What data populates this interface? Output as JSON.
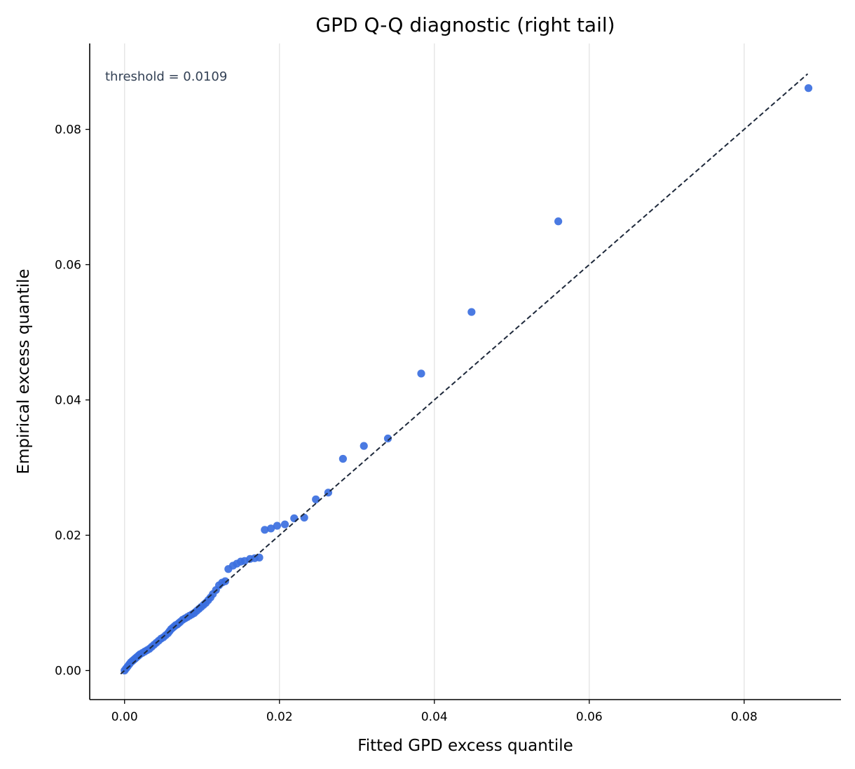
{
  "chart_data": {
    "type": "scatter",
    "title": "GPD Q-Q diagnostic (right tail)",
    "xlabel": "Fitted GPD excess quantile",
    "ylabel": "Empirical excess quantile",
    "annotation": "threshold = 0.0109",
    "xlim": [
      -0.0045,
      0.0925
    ],
    "ylim": [
      -0.0043,
      0.0927
    ],
    "xticks": [
      0.0,
      0.02,
      0.04,
      0.06,
      0.08
    ],
    "xtick_labels": [
      "0.00",
      "0.02",
      "0.04",
      "0.06",
      "0.08"
    ],
    "yticks": [
      0.0,
      0.02,
      0.04,
      0.06,
      0.08
    ],
    "ytick_labels": [
      "0.00",
      "0.02",
      "0.04",
      "0.06",
      "0.08"
    ],
    "grid": "vertical",
    "point_color": "#3b6fe0",
    "line_color": "#1e293b",
    "reference_line": {
      "style": "dashed",
      "x": [
        -0.0005,
        0.0882
      ],
      "y": [
        -0.0005,
        0.0882
      ]
    },
    "series": [
      {
        "x": [
          0.0,
          0.0002,
          0.0004,
          0.0006,
          0.0008,
          0.001,
          0.0012,
          0.0014,
          0.0016,
          0.0018,
          0.002,
          0.0023,
          0.0026,
          0.0029,
          0.0032,
          0.0035,
          0.0038,
          0.0041,
          0.0044,
          0.0047,
          0.005,
          0.0053,
          0.0056,
          0.0058,
          0.006,
          0.0062,
          0.0064,
          0.0066,
          0.0068,
          0.007,
          0.0072,
          0.0075,
          0.0078,
          0.0081,
          0.0084,
          0.0087,
          0.009,
          0.0093,
          0.0096,
          0.0099,
          0.0102,
          0.0105,
          0.0108,
          0.0111,
          0.0114,
          0.0118,
          0.0122,
          0.0126,
          0.013,
          0.0134,
          0.014,
          0.0145,
          0.015,
          0.0155,
          0.0162,
          0.0168,
          0.0174,
          0.0181,
          0.0189,
          0.0197,
          0.0207,
          0.0219,
          0.0232,
          0.0247,
          0.0263,
          0.0282,
          0.0309,
          0.034,
          0.0383,
          0.0448,
          0.056,
          0.0883
        ],
        "y": [
          0.0,
          0.0003,
          0.0006,
          0.0009,
          0.0012,
          0.0014,
          0.0016,
          0.0018,
          0.002,
          0.0022,
          0.0024,
          0.0026,
          0.0028,
          0.003,
          0.0032,
          0.0035,
          0.0038,
          0.0041,
          0.0044,
          0.0047,
          0.0049,
          0.0052,
          0.0055,
          0.0058,
          0.0061,
          0.0063,
          0.0065,
          0.0067,
          0.0068,
          0.007,
          0.0072,
          0.0075,
          0.0077,
          0.0079,
          0.0081,
          0.0083,
          0.0085,
          0.0088,
          0.0091,
          0.0094,
          0.0097,
          0.01,
          0.0104,
          0.0108,
          0.0113,
          0.0119,
          0.0126,
          0.013,
          0.0132,
          0.015,
          0.0155,
          0.0158,
          0.0161,
          0.0162,
          0.0165,
          0.0166,
          0.0167,
          0.0208,
          0.021,
          0.0214,
          0.0216,
          0.0225,
          0.0226,
          0.0253,
          0.0263,
          0.0313,
          0.0332,
          0.0343,
          0.0439,
          0.053,
          0.0664,
          0.0861
        ]
      }
    ]
  }
}
